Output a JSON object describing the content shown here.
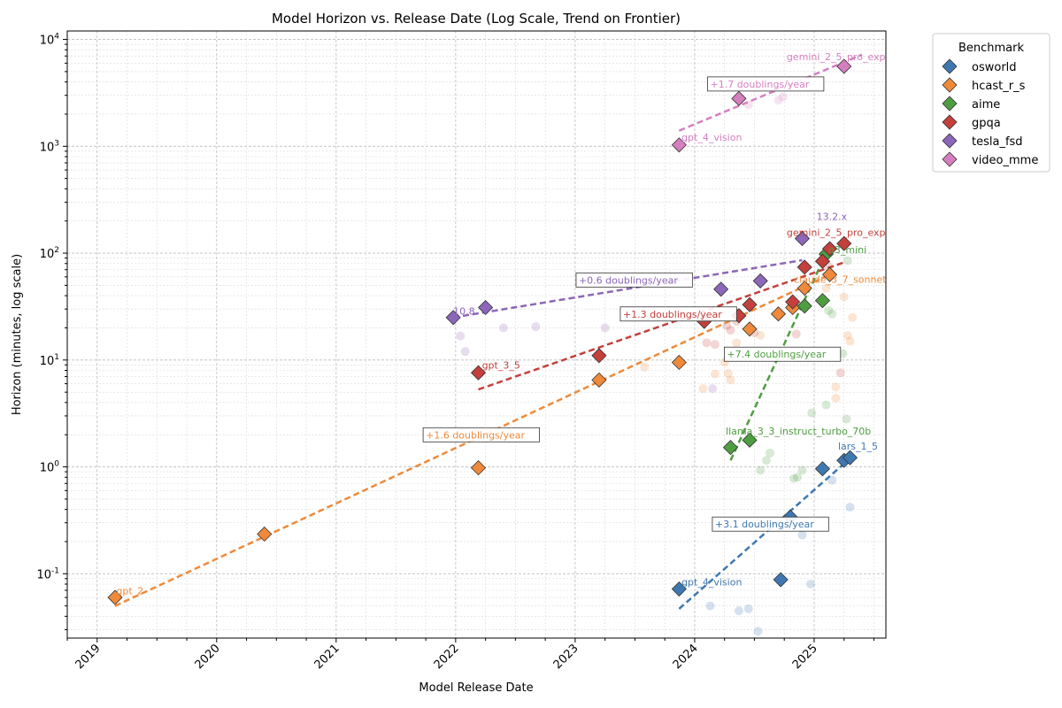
{
  "chart_data": {
    "type": "scatter",
    "title": "Model Horizon vs. Release Date (Log Scale, Trend on Frontier)",
    "xlabel": "Model Release Date",
    "ylabel": "Horizon (minutes, log scale)",
    "xlim": [
      2018.75,
      2025.6
    ],
    "ylim": [
      0.025,
      12000
    ],
    "x_ticks": [
      "2019",
      "2020",
      "2021",
      "2022",
      "2023",
      "2024",
      "2025"
    ],
    "y_ticks": [
      {
        "exp": "-1",
        "value": 0.1
      },
      {
        "exp": "0",
        "value": 1
      },
      {
        "exp": "1",
        "value": 10
      },
      {
        "exp": "2",
        "value": 100
      },
      {
        "exp": "3",
        "value": 1000
      },
      {
        "exp": "4",
        "value": 10000
      }
    ],
    "y_tick_base": "10",
    "legend": {
      "title": "Benchmark",
      "location": "upper-right-outside"
    },
    "series": [
      {
        "name": "osworld",
        "color": "#3f78b1",
        "frontier": [
          {
            "x": 2023.87,
            "y": 0.072
          },
          {
            "x": 2024.72,
            "y": 0.088
          },
          {
            "x": 2024.8,
            "y": 0.34
          },
          {
            "x": 2025.07,
            "y": 0.96
          },
          {
            "x": 2025.25,
            "y": 1.15
          },
          {
            "x": 2025.3,
            "y": 1.22
          }
        ],
        "others": [
          {
            "x": 2024.13,
            "y": 0.05
          },
          {
            "x": 2024.37,
            "y": 0.045
          },
          {
            "x": 2024.45,
            "y": 0.047
          },
          {
            "x": 2024.53,
            "y": 0.029
          },
          {
            "x": 2024.9,
            "y": 0.23
          },
          {
            "x": 2024.97,
            "y": 0.08
          },
          {
            "x": 2025.15,
            "y": 0.75
          },
          {
            "x": 2025.3,
            "y": 0.42
          }
        ],
        "trend": {
          "x": [
            2023.87,
            2025.3
          ],
          "y": [
            0.047,
            1.2
          ],
          "label": "+3.1 doublings/year",
          "label_x": 2024.17,
          "label_y": 0.27
        },
        "labels": [
          {
            "text": "gpt_4_vision",
            "x": 2023.89,
            "y": 0.078
          },
          {
            "text": "lars_1_5",
            "x": 2025.2,
            "y": 1.45
          }
        ]
      },
      {
        "name": "hcast_r_s",
        "color": "#ee8a3a",
        "frontier": [
          {
            "x": 2019.15,
            "y": 0.06
          },
          {
            "x": 2020.4,
            "y": 0.235
          },
          {
            "x": 2022.19,
            "y": 0.98
          },
          {
            "x": 2023.2,
            "y": 6.5
          },
          {
            "x": 2023.87,
            "y": 9.5
          },
          {
            "x": 2024.46,
            "y": 19.5
          },
          {
            "x": 2024.7,
            "y": 27
          },
          {
            "x": 2024.82,
            "y": 31
          },
          {
            "x": 2024.92,
            "y": 47
          },
          {
            "x": 2025.13,
            "y": 63
          }
        ],
        "others": [
          {
            "x": 2023.58,
            "y": 8.6
          },
          {
            "x": 2024.07,
            "y": 5.4
          },
          {
            "x": 2024.17,
            "y": 7.4
          },
          {
            "x": 2024.25,
            "y": 9.5
          },
          {
            "x": 2024.28,
            "y": 7.5
          },
          {
            "x": 2024.3,
            "y": 6.5
          },
          {
            "x": 2024.35,
            "y": 14.5
          },
          {
            "x": 2024.55,
            "y": 17
          },
          {
            "x": 2025.1,
            "y": 47
          },
          {
            "x": 2025.18,
            "y": 5.6
          },
          {
            "x": 2025.18,
            "y": 4.4
          },
          {
            "x": 2025.25,
            "y": 39
          },
          {
            "x": 2025.28,
            "y": 17
          },
          {
            "x": 2025.3,
            "y": 15
          },
          {
            "x": 2025.32,
            "y": 25
          }
        ],
        "trend": {
          "x": [
            2019.15,
            2025.13
          ],
          "y": [
            0.05,
            63
          ],
          "label": "+1.6 doublings/year",
          "label_x": 2021.75,
          "label_y": 1.85
        },
        "labels": [
          {
            "text": "gpt_2",
            "x": 2019.16,
            "y": 0.064
          },
          {
            "text": "claude_3_7_sonnet",
            "x": 2024.83,
            "y": 53
          }
        ]
      },
      {
        "name": "aime",
        "color": "#4e9e41",
        "frontier": [
          {
            "x": 2024.3,
            "y": 1.52
          },
          {
            "x": 2024.46,
            "y": 1.78
          },
          {
            "x": 2024.92,
            "y": 32
          },
          {
            "x": 2025.07,
            "y": 36
          },
          {
            "x": 2025.1,
            "y": 98
          }
        ],
        "others": [
          {
            "x": 2024.55,
            "y": 0.93
          },
          {
            "x": 2024.6,
            "y": 1.15
          },
          {
            "x": 2024.63,
            "y": 1.35
          },
          {
            "x": 2024.83,
            "y": 0.78
          },
          {
            "x": 2024.86,
            "y": 0.8
          },
          {
            "x": 2024.9,
            "y": 0.93
          },
          {
            "x": 2024.98,
            "y": 3.2
          },
          {
            "x": 2025.1,
            "y": 3.8
          },
          {
            "x": 2025.12,
            "y": 29
          },
          {
            "x": 2025.15,
            "y": 27
          },
          {
            "x": 2025.24,
            "y": 11.5
          },
          {
            "x": 2025.27,
            "y": 2.8
          },
          {
            "x": 2025.28,
            "y": 85
          }
        ],
        "trend": {
          "x": [
            2024.3,
            2025.1
          ],
          "y": [
            1.15,
            100
          ],
          "label": "+7.4 doublings/year",
          "label_x": 2024.27,
          "label_y": 10.5
        },
        "labels": [
          {
            "text": "llama_3_3_instruct_turbo_70b",
            "x": 2024.26,
            "y": 2.0
          },
          {
            "text": "o3_mini",
            "x": 2025.12,
            "y": 100
          }
        ]
      },
      {
        "name": "gpqa",
        "color": "#c3403c",
        "frontier": [
          {
            "x": 2022.19,
            "y": 7.6
          },
          {
            "x": 2023.2,
            "y": 11
          },
          {
            "x": 2024.08,
            "y": 23
          },
          {
            "x": 2024.37,
            "y": 26
          },
          {
            "x": 2024.46,
            "y": 33
          },
          {
            "x": 2024.82,
            "y": 35
          },
          {
            "x": 2024.92,
            "y": 74
          },
          {
            "x": 2025.07,
            "y": 84
          },
          {
            "x": 2025.13,
            "y": 110
          },
          {
            "x": 2025.25,
            "y": 123
          }
        ],
        "others": [
          {
            "x": 2024.1,
            "y": 14.5
          },
          {
            "x": 2024.17,
            "y": 14
          },
          {
            "x": 2024.27,
            "y": 21
          },
          {
            "x": 2024.3,
            "y": 19
          },
          {
            "x": 2024.35,
            "y": 23
          },
          {
            "x": 2024.5,
            "y": 18
          },
          {
            "x": 2024.85,
            "y": 17.5
          },
          {
            "x": 2025.12,
            "y": 75
          },
          {
            "x": 2025.22,
            "y": 7.6
          }
        ],
        "trend": {
          "x": [
            2022.19,
            2025.25
          ],
          "y": [
            5.3,
            82
          ],
          "label": "+1.3 doublings/year",
          "label_x": 2023.4,
          "label_y": 25
        },
        "labels": [
          {
            "text": "gpt_3_5",
            "x": 2022.22,
            "y": 8.3
          },
          {
            "text": "gemini_2_5_pro_exp",
            "x": 2024.77,
            "y": 145
          }
        ]
      },
      {
        "name": "tesla_fsd",
        "color": "#8c66b8",
        "frontier": [
          {
            "x": 2021.98,
            "y": 25
          },
          {
            "x": 2022.25,
            "y": 31
          },
          {
            "x": 2024.22,
            "y": 46
          },
          {
            "x": 2024.55,
            "y": 55
          },
          {
            "x": 2024.9,
            "y": 137
          }
        ],
        "others": [
          {
            "x": 2022.04,
            "y": 16.8
          },
          {
            "x": 2022.08,
            "y": 12
          },
          {
            "x": 2022.4,
            "y": 20
          },
          {
            "x": 2022.67,
            "y": 20.5
          },
          {
            "x": 2023.25,
            "y": 20
          },
          {
            "x": 2024.15,
            "y": 5.4
          }
        ],
        "trend": {
          "x": [
            2021.98,
            2024.9
          ],
          "y": [
            25,
            86
          ],
          "label": "+0.6 doublings/year",
          "label_x": 2023.03,
          "label_y": 52
        },
        "labels": [
          {
            "text": "10.8",
            "x": 2021.98,
            "y": 26.5
          },
          {
            "text": "13.2.x",
            "x": 2025.02,
            "y": 205
          }
        ]
      },
      {
        "name": "video_mme",
        "color": "#d57fbf",
        "frontier": [
          {
            "x": 2023.87,
            "y": 1030
          },
          {
            "x": 2024.37,
            "y": 2800
          },
          {
            "x": 2025.25,
            "y": 5600
          }
        ],
        "others": [
          {
            "x": 2024.45,
            "y": 4000
          },
          {
            "x": 2024.45,
            "y": 2450
          },
          {
            "x": 2024.7,
            "y": 2700
          },
          {
            "x": 2024.74,
            "y": 2900
          }
        ],
        "trend": {
          "x": [
            2023.87,
            2025.4
          ],
          "y": [
            1400,
            7200
          ],
          "label": "+1.7 doublings/year",
          "label_x": 2024.13,
          "label_y": 3550
        },
        "labels": [
          {
            "text": "gpt_4_vision",
            "x": 2023.89,
            "y": 1130
          },
          {
            "text": "gemini_2_5_pro_exp",
            "x": 2024.77,
            "y": 6400
          }
        ]
      }
    ]
  }
}
